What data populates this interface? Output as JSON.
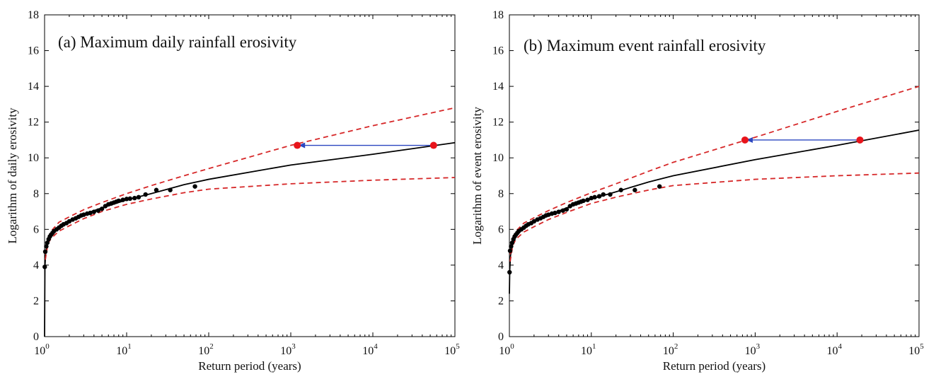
{
  "colors": {
    "fit": "#000000",
    "ci": "#d62728",
    "marker": "#e8141b",
    "arrow": "#2b46c0",
    "points": "#000000"
  },
  "chart_data": [
    {
      "type": "line",
      "title": "(a) Maximum daily rainfall erosivity",
      "xlabel": "Return period (years)",
      "ylabel": "Logarithm of daily erosivity",
      "xscale": "log",
      "xlim": [
        1,
        100000
      ],
      "ylim": [
        0,
        18
      ],
      "x_ticks": [
        {
          "base": "10",
          "exp": "0",
          "value": 1
        },
        {
          "base": "10",
          "exp": "1",
          "value": 10
        },
        {
          "base": "10",
          "exp": "2",
          "value": 100
        },
        {
          "base": "10",
          "exp": "3",
          "value": 1000
        },
        {
          "base": "10",
          "exp": "4",
          "value": 10000
        },
        {
          "base": "10",
          "exp": "5",
          "value": 100000
        }
      ],
      "y_ticks": [
        "0",
        "2",
        "4",
        "6",
        "8",
        "10",
        "12",
        "14",
        "16",
        "18"
      ],
      "grid": false,
      "series": [
        {
          "role": "fitted",
          "style": "solid",
          "x": [
            1.0,
            1.01,
            1.03,
            1.06,
            1.1,
            1.2,
            1.4,
            1.7,
            2,
            3,
            5,
            10,
            20,
            50,
            100,
            1000,
            10000,
            100000
          ],
          "y": [
            0.0,
            3.9,
            4.6,
            5.0,
            5.3,
            5.65,
            6.0,
            6.3,
            6.5,
            6.85,
            7.2,
            7.65,
            8.0,
            8.5,
            8.8,
            9.6,
            10.2,
            10.85
          ]
        },
        {
          "role": "upper bound",
          "style": "dashed",
          "x": [
            1.02,
            1.1,
            1.2,
            1.5,
            2,
            3,
            5,
            10,
            20,
            50,
            100,
            1000,
            10000,
            100000
          ],
          "y": [
            4.6,
            5.5,
            5.9,
            6.4,
            6.7,
            7.1,
            7.5,
            8.0,
            8.45,
            9.0,
            9.4,
            10.7,
            11.8,
            12.8
          ]
        },
        {
          "role": "lower bound",
          "style": "dashed",
          "x": [
            1.02,
            1.1,
            1.2,
            1.5,
            2,
            3,
            5,
            10,
            20,
            50,
            100,
            1000,
            10000,
            100000
          ],
          "y": [
            4.3,
            5.2,
            5.5,
            5.9,
            6.2,
            6.6,
            7.0,
            7.4,
            7.7,
            8.05,
            8.25,
            8.55,
            8.75,
            8.9
          ]
        }
      ],
      "points": {
        "x": [
          1.005,
          1.02,
          1.05,
          1.08,
          1.12,
          1.16,
          1.2,
          1.25,
          1.3,
          1.4,
          1.5,
          1.6,
          1.7,
          1.85,
          2.0,
          2.2,
          2.4,
          2.6,
          2.8,
          3.0,
          3.3,
          3.6,
          4.0,
          4.5,
          5.0,
          5.5,
          6.0,
          6.5,
          7.0,
          7.5,
          8.0,
          9.0,
          10,
          11,
          12.5,
          14,
          17,
          23,
          34,
          68
        ],
        "y": [
          3.9,
          4.75,
          5.05,
          5.25,
          5.45,
          5.6,
          5.7,
          5.8,
          5.9,
          6.0,
          6.1,
          6.2,
          6.28,
          6.35,
          6.45,
          6.55,
          6.62,
          6.7,
          6.78,
          6.82,
          6.88,
          6.92,
          6.98,
          7.05,
          7.15,
          7.3,
          7.4,
          7.45,
          7.5,
          7.55,
          7.6,
          7.65,
          7.7,
          7.72,
          7.75,
          7.8,
          7.95,
          8.2,
          8.2,
          8.4
        ]
      },
      "markers": [
        {
          "x": 1200,
          "y": 10.7
        },
        {
          "x": 55000,
          "y": 10.7
        }
      ],
      "arrow": {
        "from_x": 55000,
        "to_x": 1200,
        "y": 10.7
      }
    },
    {
      "type": "line",
      "title": "(b) Maximum event rainfall erosivity",
      "xlabel": "Return period (years)",
      "ylabel": "Logarithm of event erosivity",
      "xscale": "log",
      "xlim": [
        1,
        100000
      ],
      "ylim": [
        0,
        18
      ],
      "x_ticks": [
        {
          "base": "10",
          "exp": "0",
          "value": 1
        },
        {
          "base": "10",
          "exp": "1",
          "value": 10
        },
        {
          "base": "10",
          "exp": "2",
          "value": 100
        },
        {
          "base": "10",
          "exp": "3",
          "value": 1000
        },
        {
          "base": "10",
          "exp": "4",
          "value": 10000
        },
        {
          "base": "10",
          "exp": "5",
          "value": 100000
        }
      ],
      "y_ticks": [
        "0",
        "2",
        "4",
        "6",
        "8",
        "10",
        "12",
        "14",
        "16",
        "18"
      ],
      "grid": false,
      "series": [
        {
          "role": "fitted",
          "style": "solid",
          "x": [
            1.0,
            1.01,
            1.03,
            1.06,
            1.1,
            1.2,
            1.4,
            1.7,
            2,
            3,
            5,
            10,
            20,
            50,
            100,
            1000,
            10000,
            100000
          ],
          "y": [
            2.4,
            3.7,
            4.5,
            4.95,
            5.25,
            5.6,
            5.95,
            6.25,
            6.45,
            6.8,
            7.2,
            7.7,
            8.1,
            8.65,
            9.0,
            9.9,
            10.7,
            11.55
          ]
        },
        {
          "role": "upper bound",
          "style": "dashed",
          "x": [
            1.02,
            1.1,
            1.2,
            1.5,
            2,
            3,
            5,
            10,
            20,
            50,
            100,
            1000,
            10000,
            100000
          ],
          "y": [
            4.6,
            5.5,
            5.9,
            6.35,
            6.65,
            7.05,
            7.5,
            8.05,
            8.55,
            9.25,
            9.75,
            11.15,
            12.6,
            14.0
          ]
        },
        {
          "role": "lower bound",
          "style": "dashed",
          "x": [
            1.02,
            1.1,
            1.2,
            1.5,
            2,
            3,
            5,
            10,
            20,
            50,
            100,
            1000,
            10000,
            100000
          ],
          "y": [
            4.2,
            5.1,
            5.45,
            5.85,
            6.15,
            6.55,
            6.95,
            7.45,
            7.8,
            8.2,
            8.45,
            8.8,
            9.0,
            9.15
          ]
        }
      ],
      "points": {
        "x": [
          1.005,
          1.02,
          1.05,
          1.08,
          1.12,
          1.16,
          1.2,
          1.25,
          1.3,
          1.4,
          1.5,
          1.6,
          1.7,
          1.85,
          2.0,
          2.2,
          2.4,
          2.6,
          2.8,
          3.0,
          3.3,
          3.6,
          4.0,
          4.5,
          5.0,
          5.5,
          6.0,
          6.5,
          7.0,
          7.5,
          8.0,
          9.0,
          10,
          11,
          12.5,
          14,
          17,
          23,
          34,
          68
        ],
        "y": [
          3.6,
          4.8,
          5.05,
          5.25,
          5.45,
          5.6,
          5.7,
          5.8,
          5.9,
          6.0,
          6.1,
          6.2,
          6.28,
          6.35,
          6.45,
          6.55,
          6.62,
          6.7,
          6.78,
          6.82,
          6.88,
          6.92,
          6.98,
          7.05,
          7.12,
          7.3,
          7.4,
          7.45,
          7.5,
          7.55,
          7.6,
          7.65,
          7.75,
          7.8,
          7.85,
          7.95,
          7.95,
          8.2,
          8.2,
          8.4
        ]
      },
      "markers": [
        {
          "x": 750,
          "y": 11.0
        },
        {
          "x": 19000,
          "y": 11.0
        }
      ],
      "arrow": {
        "from_x": 19000,
        "to_x": 750,
        "y": 11.0
      }
    }
  ]
}
